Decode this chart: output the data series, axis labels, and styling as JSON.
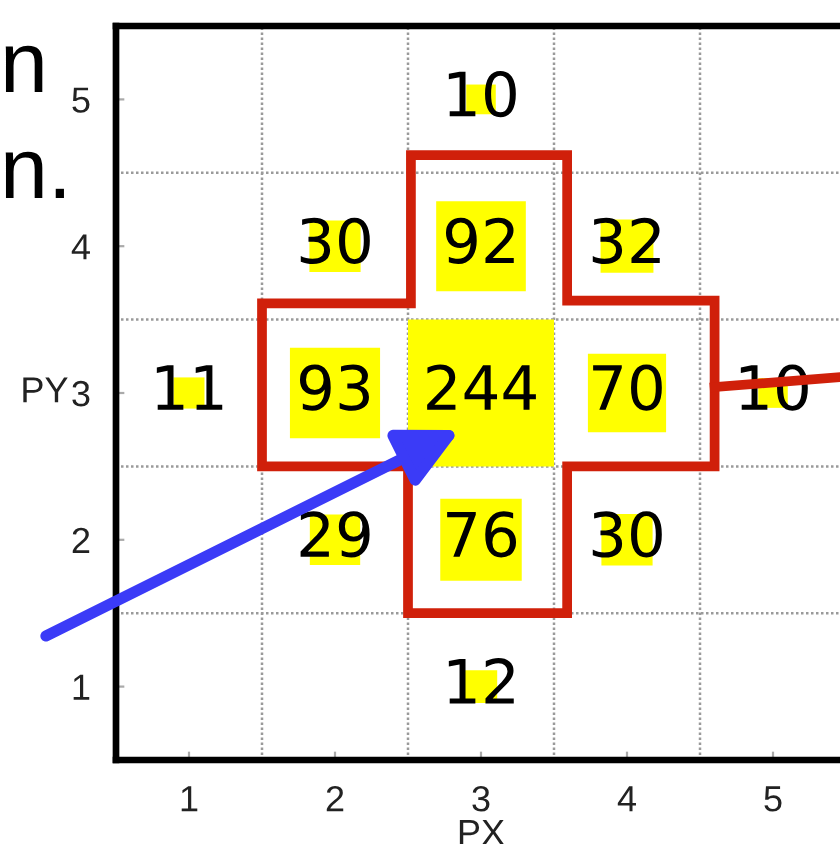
{
  "chart_data": {
    "type": "heatmap",
    "xlabel": "PX",
    "ylabel": "PY",
    "categories": [
      "1",
      "2",
      "3",
      "4",
      "5"
    ],
    "y_categories": [
      "5",
      "4",
      "3",
      "2",
      "1"
    ],
    "cells": [
      [
        null,
        null,
        10,
        null,
        null
      ],
      [
        null,
        30,
        92,
        32,
        null
      ],
      [
        11,
        93,
        244,
        70,
        10
      ],
      [
        null,
        29,
        76,
        30,
        null
      ],
      [
        null,
        null,
        12,
        null,
        null
      ]
    ],
    "color": "#ffff00",
    "data_labels": true,
    "grid": true,
    "annotations": [
      "n",
      "n."
    ]
  }
}
